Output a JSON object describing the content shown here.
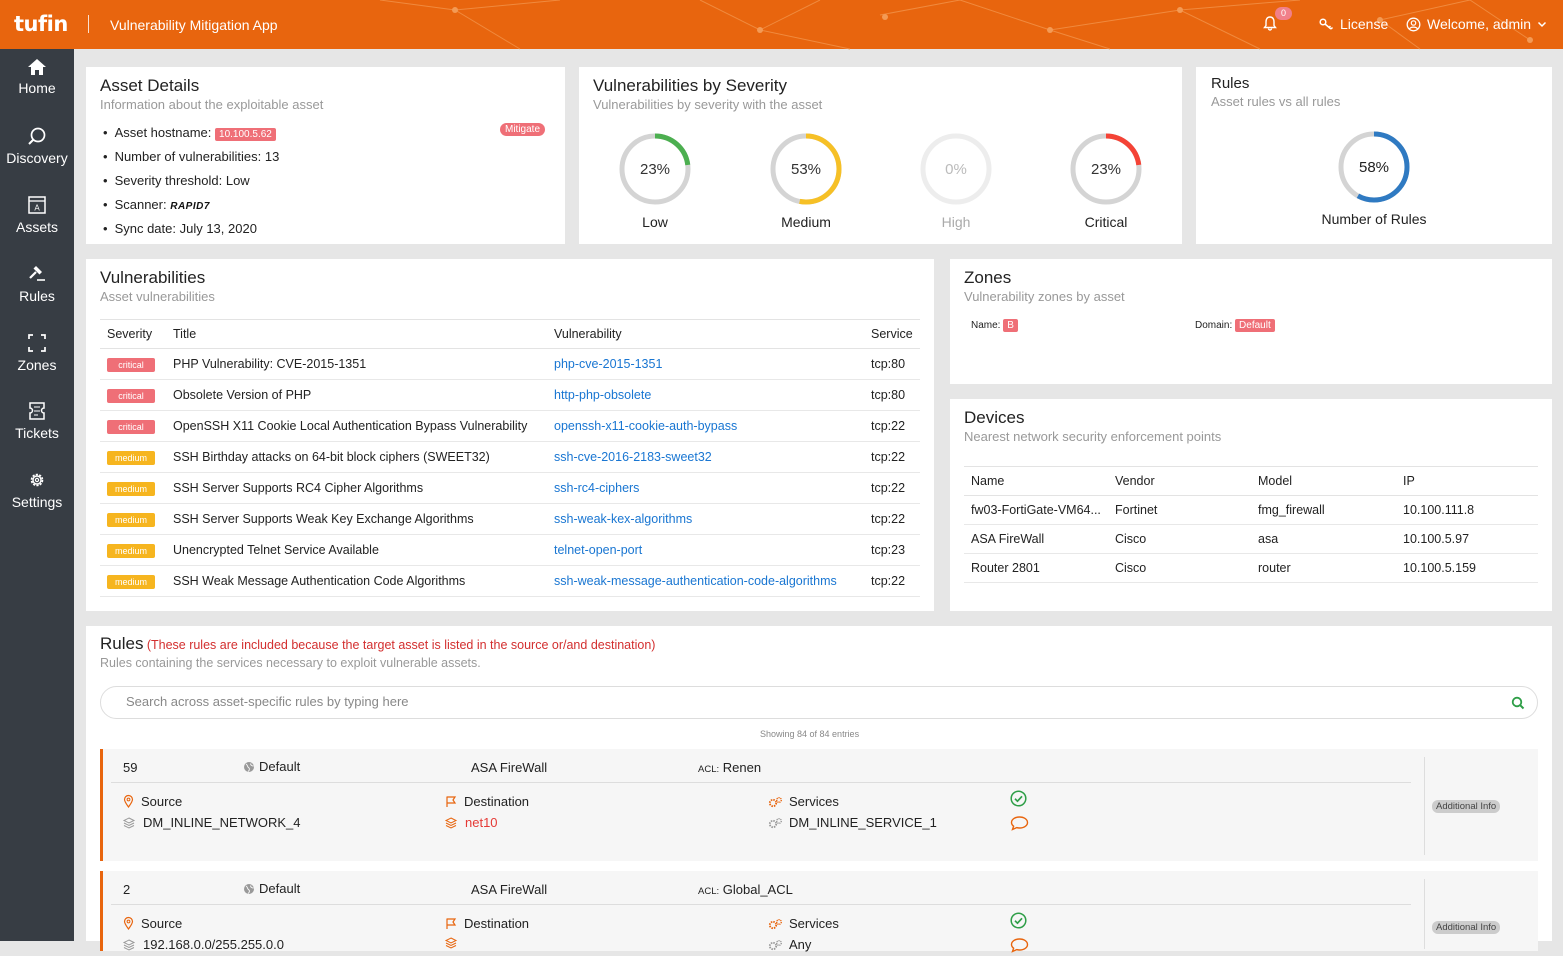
{
  "app": {
    "logo": "tufin",
    "title": "Vulnerability Mitigation App",
    "notification_count": "0",
    "license": "License",
    "welcome": "Welcome, admin"
  },
  "colors": {
    "brand": "#e8650e",
    "sidebar": "#373d44",
    "critical": "#ef6f77",
    "medium": "#f6b51f",
    "link": "#1976d2",
    "low_ring": "#4caf50",
    "rules_ring": "#2f7ac2"
  },
  "sidebar": {
    "items": [
      {
        "label": "Home",
        "icon": "home-icon"
      },
      {
        "label": "Discovery",
        "icon": "search-icon"
      },
      {
        "label": "Assets",
        "icon": "asset-icon"
      },
      {
        "label": "Rules",
        "icon": "gavel-icon"
      },
      {
        "label": "Zones",
        "icon": "zone-icon"
      },
      {
        "label": "Tickets",
        "icon": "ticket-icon"
      },
      {
        "label": "Settings",
        "icon": "gear-icon"
      }
    ]
  },
  "asset_details": {
    "title": "Asset Details",
    "subtitle": "Information about the exploitable asset",
    "mitigate": "Mitigate",
    "hostname_label": "Asset hostname:",
    "hostname": "10.100.5.62",
    "vuln_count": "Number of vulnerabilities: 13",
    "threshold": "Severity threshold: Low",
    "scanner_label": "Scanner:",
    "scanner": "RAPID7",
    "sync": "Sync date: July 13, 2020"
  },
  "severity": {
    "title": "Vulnerabilities by Severity",
    "subtitle": "Vulnerabilities by severity with the asset",
    "items": [
      {
        "label": "Low",
        "pct": "23%",
        "value": 23,
        "color": "#4caf50"
      },
      {
        "label": "Medium",
        "pct": "53%",
        "value": 53,
        "color": "#f6c026"
      },
      {
        "label": "High",
        "pct": "0%",
        "value": 0,
        "color": "#cccccc"
      },
      {
        "label": "Critical",
        "pct": "23%",
        "value": 23,
        "color": "#f44336"
      }
    ]
  },
  "rules_summary": {
    "title": "Rules",
    "subtitle": "Asset rules vs all rules",
    "pct": "58%",
    "value": 58,
    "label": "Number of Rules"
  },
  "vulnerabilities": {
    "title": "Vulnerabilities",
    "subtitle": "Asset vulnerabilities",
    "headers": [
      "Severity",
      "Title",
      "Vulnerability",
      "Service"
    ],
    "rows": [
      {
        "sev": "critical",
        "title": "PHP Vulnerability: CVE-2015-1351",
        "vuln": "php-cve-2015-1351",
        "service": "tcp:80"
      },
      {
        "sev": "critical",
        "title": "Obsolete Version of PHP",
        "vuln": "http-php-obsolete",
        "service": "tcp:80"
      },
      {
        "sev": "critical",
        "title": "OpenSSH X11 Cookie Local Authentication Bypass Vulnerability",
        "vuln": "openssh-x11-cookie-auth-bypass",
        "service": "tcp:22"
      },
      {
        "sev": "medium",
        "title": "SSH Birthday attacks on 64-bit block ciphers (SWEET32)",
        "vuln": "ssh-cve-2016-2183-sweet32",
        "service": "tcp:22"
      },
      {
        "sev": "medium",
        "title": "SSH Server Supports RC4 Cipher Algorithms",
        "vuln": "ssh-rc4-ciphers",
        "service": "tcp:22"
      },
      {
        "sev": "medium",
        "title": "SSH Server Supports Weak Key Exchange Algorithms",
        "vuln": "ssh-weak-kex-algorithms",
        "service": "tcp:22"
      },
      {
        "sev": "medium",
        "title": "Unencrypted Telnet Service Available",
        "vuln": "telnet-open-port",
        "service": "tcp:23"
      },
      {
        "sev": "medium",
        "title": "SSH Weak Message Authentication Code Algorithms",
        "vuln": "ssh-weak-message-authentication-code-algorithms",
        "service": "tcp:22"
      }
    ]
  },
  "zones": {
    "title": "Zones",
    "subtitle": "Vulnerability zones by asset",
    "name_label": "Name:",
    "name": "B",
    "domain_label": "Domain:",
    "domain": "Default"
  },
  "devices": {
    "title": "Devices",
    "subtitle": "Nearest network security enforcement points",
    "headers": [
      "Name",
      "Vendor",
      "Model",
      "IP"
    ],
    "rows": [
      {
        "name": "fw03-FortiGate-VM64...",
        "vendor": "Fortinet",
        "model": "fmg_firewall",
        "ip": "10.100.111.8"
      },
      {
        "name": "ASA FireWall",
        "vendor": "Cisco",
        "model": "asa",
        "ip": "10.100.5.97"
      },
      {
        "name": "Router 2801",
        "vendor": "Cisco",
        "model": "router",
        "ip": "10.100.5.159"
      }
    ]
  },
  "rules": {
    "title": "Rules",
    "note": "(These rules are included because the target asset is listed in the source or/and destination)",
    "subtitle": "Rules containing the services necessary to exploit vulnerable assets.",
    "search_placeholder": "Search across asset-specific rules by typing here",
    "showing": "Showing 84 of 84 entries",
    "source_label": "Source",
    "destination_label": "Destination",
    "services_label": "Services",
    "acl_prefix": "ACL:",
    "additional_info": "Additional Info",
    "items": [
      {
        "id": "59",
        "domain": "Default",
        "device": "ASA FireWall",
        "acl": "Renen",
        "source": "DM_INLINE_NETWORK_4",
        "destination": "net10",
        "service": "DM_INLINE_SERVICE_1"
      },
      {
        "id": "2",
        "domain": "Default",
        "device": "ASA FireWall",
        "acl": "Global_ACL",
        "source": "192.168.0.0/255.255.0.0",
        "destination": "",
        "service": "Any"
      }
    ]
  }
}
